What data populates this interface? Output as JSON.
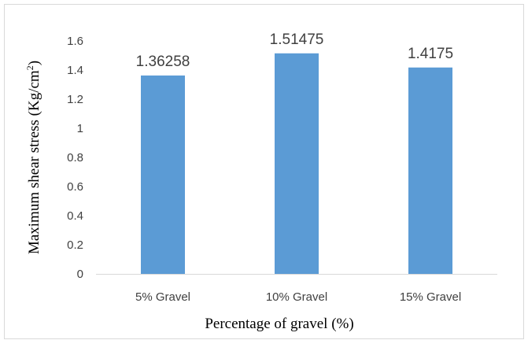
{
  "chart_data": {
    "type": "bar",
    "categories": [
      "5% Gravel",
      "10% Gravel",
      "15% Gravel"
    ],
    "values": [
      1.36258,
      1.51475,
      1.4175
    ],
    "data_labels": [
      "1.36258",
      "1.51475",
      "1.4175"
    ],
    "ylim": [
      0,
      1.6
    ],
    "yticks": [
      "0",
      "0.2",
      "0.4",
      "0.6",
      "0.8",
      "1",
      "1.2",
      "1.4",
      "1.6"
    ],
    "xlabel": "Percentage of gravel  (%)",
    "ylabel": {
      "main": "Maximum  shear stress (Kg/cm",
      "sup": "2",
      "close": ")"
    },
    "bar_color": "#5b9bd5",
    "axis_color": "#d9d9d9",
    "grid": false,
    "legend": "none"
  }
}
